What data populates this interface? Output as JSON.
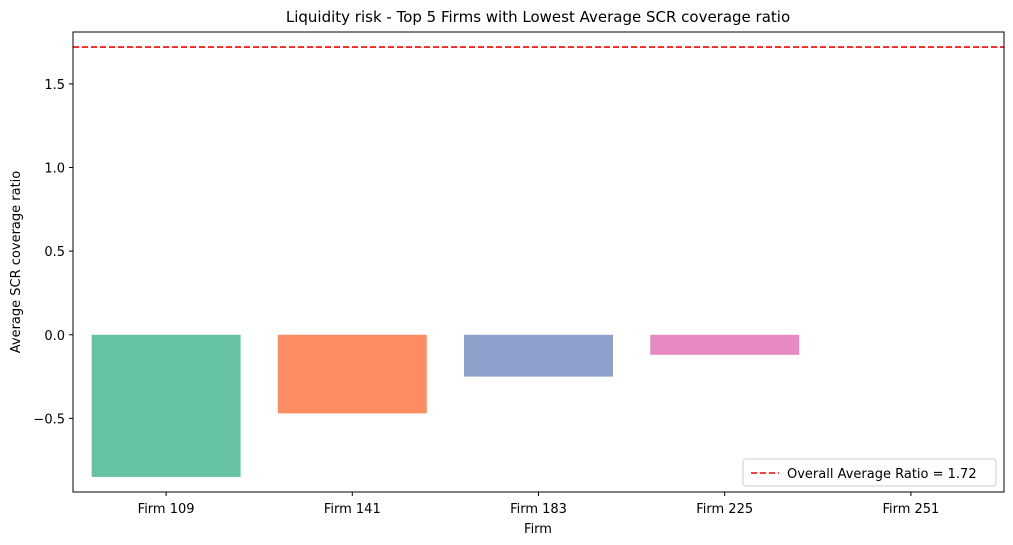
{
  "chart_data": {
    "type": "bar",
    "title": "Liquidity risk - Top 5 Firms with Lowest Average SCR coverage ratio",
    "xlabel": "Firm",
    "ylabel": "Average SCR coverage ratio",
    "categories": [
      "Firm 109",
      "Firm 141",
      "Firm 183",
      "Firm 225",
      "Firm 251"
    ],
    "values": [
      -0.85,
      -0.47,
      -0.25,
      -0.12,
      0.0
    ],
    "bar_colors": [
      "#66c2a5",
      "#fc8d62",
      "#8da0cb",
      "#e78ac3",
      "#a6d854"
    ],
    "ylim": [
      -0.94,
      1.81
    ],
    "yticks": [
      -0.5,
      0.0,
      0.5,
      1.0,
      1.5
    ],
    "ytick_labels": [
      "−0.5",
      "0.0",
      "0.5",
      "1.0",
      "1.5"
    ],
    "reference_line": {
      "value": 1.72,
      "color": "#ff0000",
      "style": "dashed",
      "label": "Overall Average Ratio = 1.72"
    },
    "legend_position": "lower-right",
    "grid": false
  }
}
